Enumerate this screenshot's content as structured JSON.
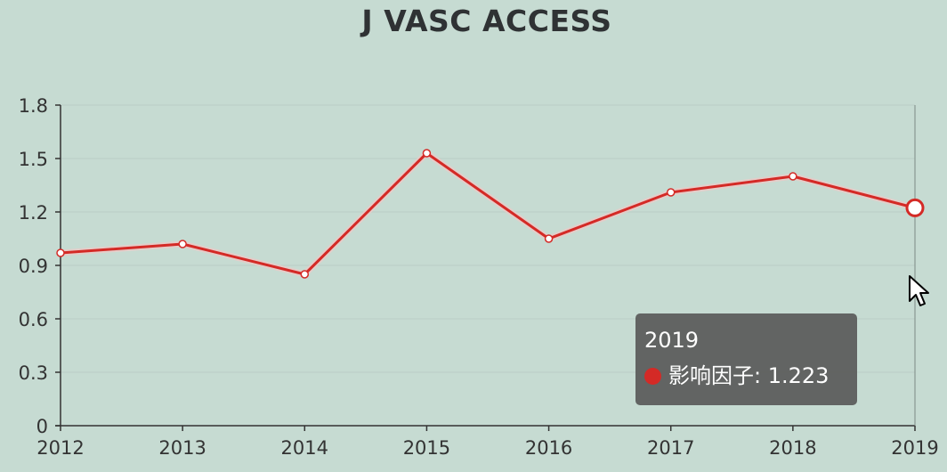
{
  "chart_data": {
    "type": "line",
    "title": "J VASC ACCESS",
    "x": [
      "2012",
      "2013",
      "2014",
      "2015",
      "2016",
      "2017",
      "2018",
      "2019"
    ],
    "series": [
      {
        "name": "影响因子",
        "values": [
          0.97,
          1.02,
          0.85,
          1.53,
          1.05,
          1.31,
          1.4,
          1.223
        ],
        "color": "#d42a26"
      }
    ],
    "ylim": [
      0,
      1.8
    ],
    "yticks": [
      "0",
      "0.3",
      "0.6",
      "0.9",
      "1.2",
      "1.5",
      "1.8"
    ],
    "grid": true,
    "highlight_index": 7
  },
  "tooltip": {
    "title": "2019",
    "series_name": "影响因子",
    "value_text": "1.223",
    "label": "影响因子: 1.223"
  }
}
